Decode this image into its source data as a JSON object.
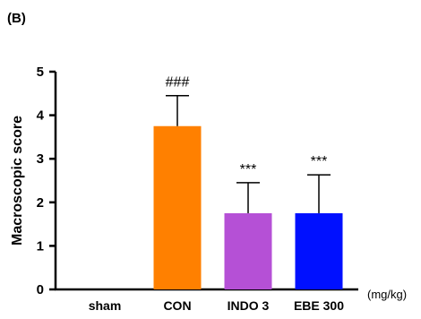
{
  "panel_label": "(B)",
  "unit_label": "(mg/kg)",
  "chart_data": {
    "type": "bar",
    "ylabel": "Macroscopic score",
    "xlabel": "",
    "ylim": [
      0,
      5
    ],
    "yticks": [
      0,
      1,
      2,
      3,
      4,
      5
    ],
    "ytick_labels": [
      "0",
      "1",
      "2",
      "3",
      "4",
      "5"
    ],
    "categories": [
      "sham",
      "CON",
      "INDO 3",
      "EBE 300"
    ],
    "values": [
      0,
      3.75,
      1.75,
      1.75
    ],
    "errors": [
      0,
      0.7,
      0.7,
      0.88
    ],
    "colors": [
      "#ffffff",
      "#ff8000",
      "#b550d6",
      "#0010ff"
    ],
    "annotations": [
      "",
      "###",
      "***",
      "***"
    ],
    "grid": false,
    "legend": "none"
  }
}
